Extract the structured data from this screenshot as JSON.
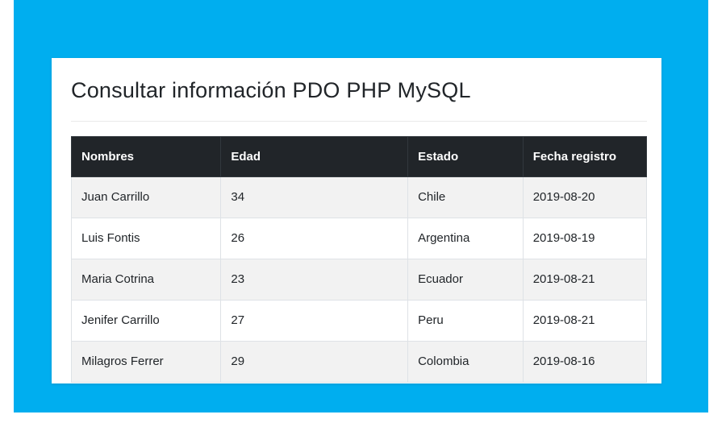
{
  "title": "Consultar información PDO PHP MySQL",
  "table": {
    "columns": [
      "Nombres",
      "Edad",
      "Estado",
      "Fecha registro"
    ],
    "rows": [
      [
        "Juan Carrillo",
        "34",
        "Chile",
        "2019-08-20"
      ],
      [
        "Luis Fontis",
        "26",
        "Argentina",
        "2019-08-19"
      ],
      [
        "Maria Cotrina",
        "23",
        "Ecuador",
        "2019-08-21"
      ],
      [
        "Jenifer Carrillo",
        "27",
        "Peru",
        "2019-08-21"
      ],
      [
        "Milagros Ferrer",
        "29",
        "Colombia",
        "2019-08-16"
      ]
    ]
  },
  "colors": {
    "page_background": "#00aeef",
    "card_background": "#ffffff",
    "table_header_background": "#212529",
    "table_header_text": "#ffffff",
    "table_header_border": "#32383e",
    "striped_row_background": "#f2f2f2",
    "cell_border": "#dee2e6",
    "body_text": "#212529"
  }
}
